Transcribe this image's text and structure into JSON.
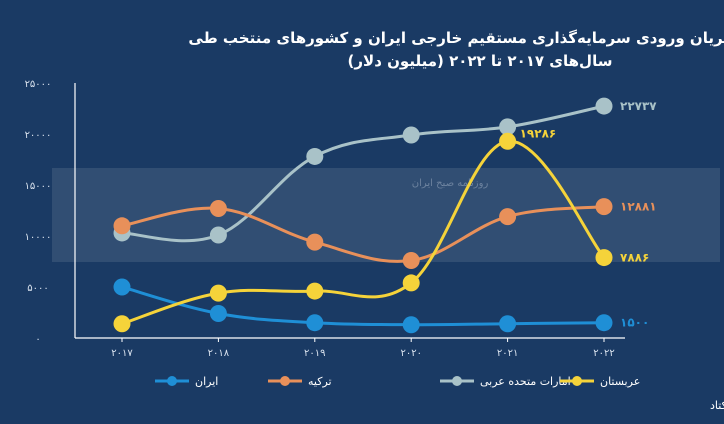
{
  "chart_data": {
    "type": "line",
    "title": "روند جریان ورودی سرمایه‌گذاری مستقیم خارجی ایران و کشورهای منتخب طی",
    "subtitle": "سال‌های ۲۰۱۷ تا ۲۰۲۲ (میلیون دلار)",
    "x": [
      "۲۰۱۷",
      "۲۰۱۸",
      "۲۰۱۹",
      "۲۰۲۰",
      "۲۰۲۱",
      "۲۰۲۲"
    ],
    "yticks": [
      0,
      5000,
      10000,
      15000,
      20000,
      25000
    ],
    "ytick_labels": [
      "۰",
      "۵۰۰۰",
      "۱۰۰۰۰",
      "۱۵۰۰۰",
      "۲۰۰۰۰",
      "۲۵۰۰۰"
    ],
    "ylim": [
      0,
      25000
    ],
    "grid": false,
    "legend_position": "bottom",
    "series": [
      {
        "name": "ایران",
        "color": "#1f8fd6",
        "values": [
          5000,
          2400,
          1500,
          1300,
          1400,
          1500
        ],
        "label": "۱۵۰۰",
        "label_index": 5
      },
      {
        "name": "ترکیه",
        "color": "#e8905a",
        "values": [
          11000,
          12700,
          9400,
          7600,
          11900,
          12881
        ],
        "label": "۱۲۸۸۱",
        "label_index": 5
      },
      {
        "name": "امارات متحده عربی",
        "color": "#a9c2c8",
        "values": [
          10300,
          10100,
          17800,
          19900,
          20700,
          22737
        ],
        "label": "۲۲۷۳۷",
        "label_index": 5
      },
      {
        "name": "عربستان",
        "color": "#f5d33a",
        "values": [
          1400,
          4400,
          4600,
          5400,
          19286,
          7886
        ],
        "label": "۱۹۲۸۶",
        "label_index": 4,
        "label2": "۷۸۸۶",
        "label2_index": 5
      }
    ]
  },
  "source": "منبع: آنکتاد",
  "watermark": "روزنامه صبح ایران"
}
